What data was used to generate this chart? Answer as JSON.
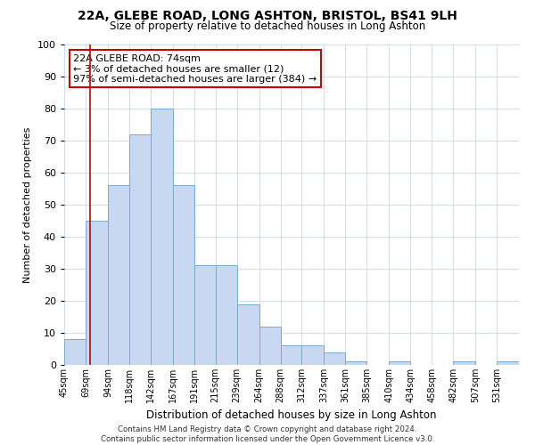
{
  "title_line1": "22A, GLEBE ROAD, LONG ASHTON, BRISTOL, BS41 9LH",
  "title_line2": "Size of property relative to detached houses in Long Ashton",
  "xlabel": "Distribution of detached houses by size in Long Ashton",
  "ylabel": "Number of detached properties",
  "bar_color": "#c8d8f0",
  "bar_edge_color": "#7aaad0",
  "vline_color": "#cc0000",
  "vline_x": 74,
  "categories": [
    "45sqm",
    "69sqm",
    "94sqm",
    "118sqm",
    "142sqm",
    "167sqm",
    "191sqm",
    "215sqm",
    "239sqm",
    "264sqm",
    "288sqm",
    "312sqm",
    "337sqm",
    "361sqm",
    "385sqm",
    "410sqm",
    "434sqm",
    "458sqm",
    "482sqm",
    "507sqm",
    "531sqm"
  ],
  "bin_edges": [
    45,
    69,
    94,
    118,
    142,
    167,
    191,
    215,
    239,
    264,
    288,
    312,
    337,
    361,
    385,
    410,
    434,
    458,
    482,
    507,
    531,
    556
  ],
  "values": [
    8,
    45,
    56,
    72,
    80,
    56,
    31,
    31,
    19,
    12,
    6,
    6,
    4,
    1,
    0,
    1,
    0,
    0,
    1,
    0,
    1
  ],
  "ylim": [
    0,
    100
  ],
  "yticks": [
    0,
    10,
    20,
    30,
    40,
    50,
    60,
    70,
    80,
    90,
    100
  ],
  "annotation_title": "22A GLEBE ROAD: 74sqm",
  "annotation_line2": "← 3% of detached houses are smaller (12)",
  "annotation_line3": "97% of semi-detached houses are larger (384) →",
  "annotation_box_color": "#ffffff",
  "annotation_box_edge_color": "#cc0000",
  "footer_line1": "Contains HM Land Registry data © Crown copyright and database right 2024.",
  "footer_line2": "Contains public sector information licensed under the Open Government Licence v3.0.",
  "background_color": "#ffffff",
  "grid_color": "#d0dce8"
}
